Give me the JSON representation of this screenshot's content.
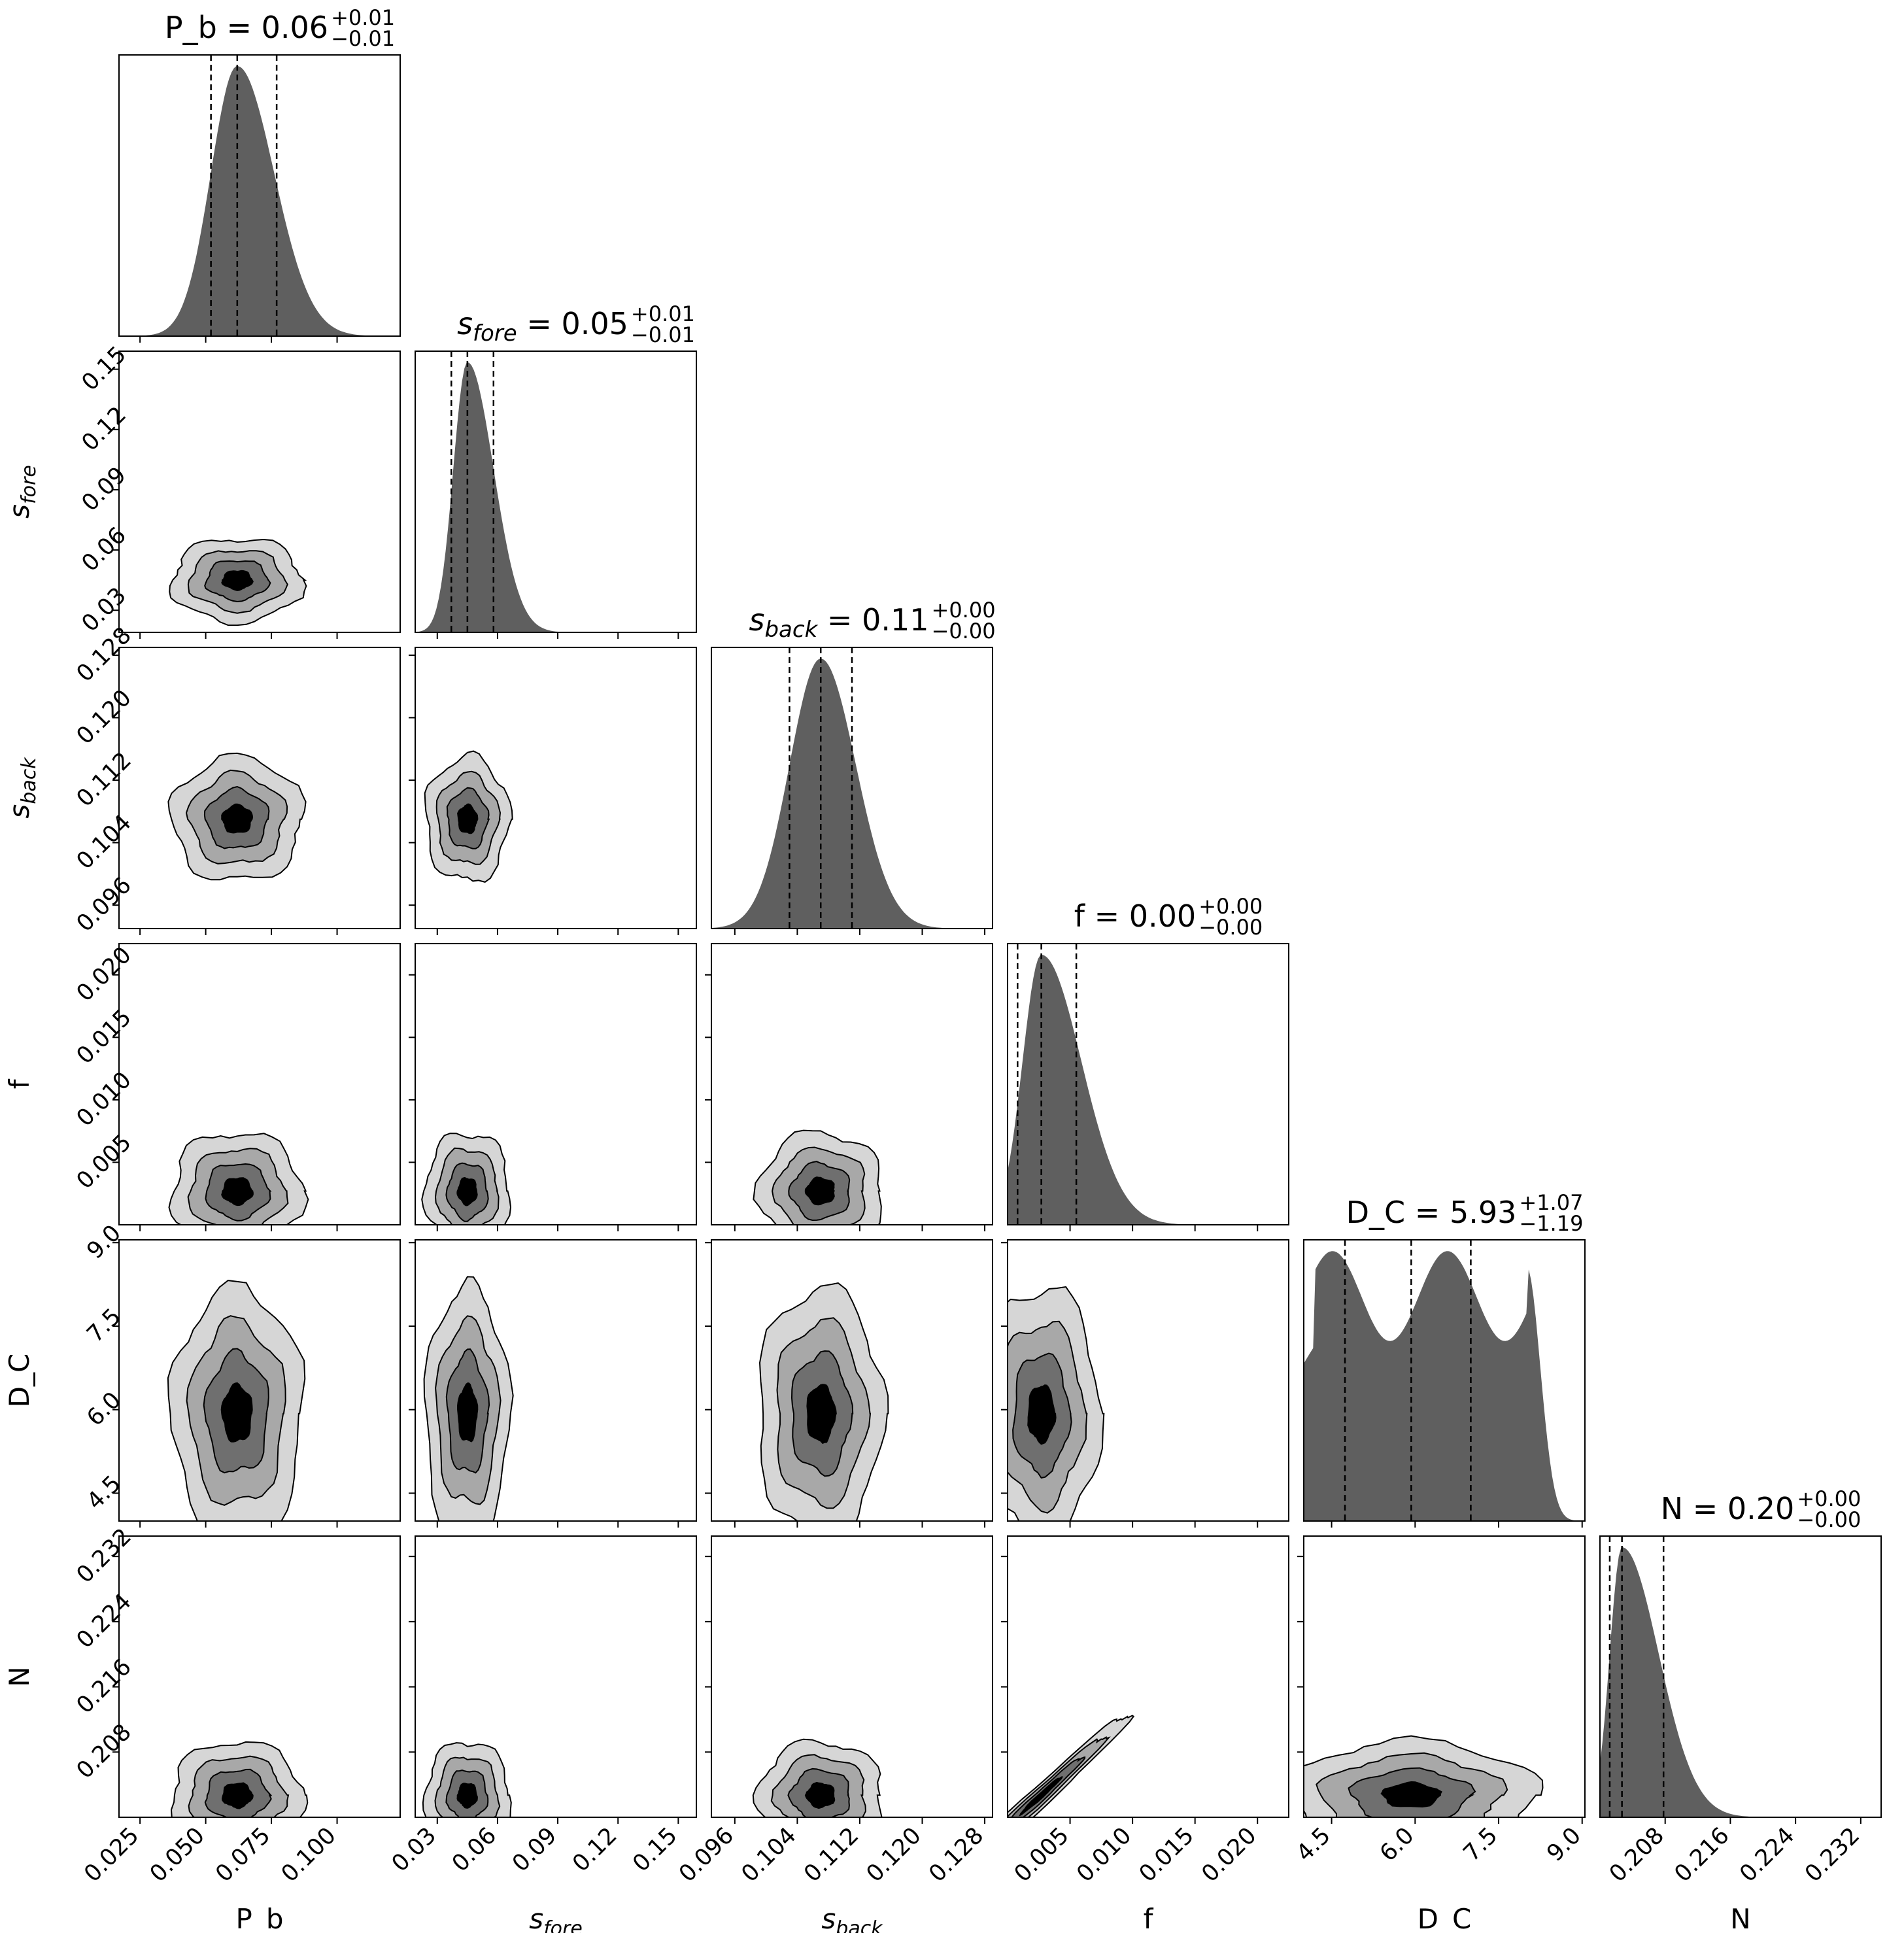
{
  "chart_data": {
    "type": "corner",
    "params": [
      {
        "key": "P_b",
        "label": "P_b",
        "label_base": "P_b",
        "label_sub": "",
        "range": [
          0.017,
          0.124
        ],
        "ticks": [
          0.025,
          0.05,
          0.075,
          0.1
        ],
        "tick_labels": [
          "0.025",
          "0.050",
          "0.075",
          "0.100"
        ],
        "median": 0.062,
        "q16": 0.052,
        "q84": 0.077,
        "title_value": "0.06",
        "title_plus": "+0.01",
        "title_minus": "−0.01",
        "hist_sigma_lo": 0.01,
        "hist_sigma_hi": 0.014
      },
      {
        "key": "s_fore",
        "label": "s_fore",
        "label_base": "s",
        "label_sub": "fore",
        "range": [
          0.019,
          0.159
        ],
        "ticks": [
          0.03,
          0.06,
          0.09,
          0.12,
          0.15
        ],
        "tick_labels": [
          "0.03",
          "0.06",
          "0.09",
          "0.12",
          "0.15"
        ],
        "median": 0.045,
        "q16": 0.037,
        "q84": 0.058,
        "title_value": "0.05",
        "title_plus": "+0.01",
        "title_minus": "−0.01",
        "hist_sigma_lo": 0.007,
        "hist_sigma_hi": 0.013
      },
      {
        "key": "s_back",
        "label": "s_back",
        "label_base": "s",
        "label_sub": "back",
        "range": [
          0.093,
          0.129
        ],
        "ticks": [
          0.096,
          0.104,
          0.112,
          0.12,
          0.128
        ],
        "tick_labels": [
          "0.096",
          "0.104",
          "0.112",
          "0.120",
          "0.128"
        ],
        "median": 0.107,
        "q16": 0.103,
        "q84": 0.111,
        "title_value": "0.11",
        "title_plus": "+0.00",
        "title_minus": "−0.00",
        "hist_sigma_lo": 0.004,
        "hist_sigma_hi": 0.0045
      },
      {
        "key": "f",
        "label": "f",
        "label_base": "f",
        "label_sub": "",
        "range": [
          0.0,
          0.0225
        ],
        "ticks": [
          0.005,
          0.01,
          0.015,
          0.02
        ],
        "tick_labels": [
          "0.005",
          "0.010",
          "0.015",
          "0.020"
        ],
        "median": 0.0027,
        "q16": 0.0008,
        "q84": 0.0055,
        "title_value": "0.00",
        "title_plus": "+0.00",
        "title_minus": "−0.00",
        "hist_sigma_lo": 0.0015,
        "hist_sigma_hi": 0.0032
      },
      {
        "key": "D_C",
        "label": "D_C",
        "label_base": "D_C",
        "label_sub": "",
        "range": [
          4.0,
          9.05
        ],
        "ticks": [
          4.5,
          6.0,
          7.5,
          9.0
        ],
        "tick_labels": [
          "4.5",
          "6.0",
          "7.5",
          "9.0"
        ],
        "median": 5.93,
        "q16": 4.74,
        "q84": 7.0,
        "title_value": "5.93",
        "title_plus": "+1.07",
        "title_minus": "−1.19",
        "hist_sigma_lo": 1.3,
        "hist_sigma_hi": 0.9
      },
      {
        "key": "N",
        "label": "N",
        "label_base": "N",
        "label_sub": "",
        "range": [
          0.2,
          0.2345
        ],
        "ticks": [
          0.208,
          0.216,
          0.224,
          0.232
        ],
        "tick_labels": [
          "0.208",
          "0.216",
          "0.224",
          "0.232"
        ],
        "median": 0.2027,
        "q16": 0.2012,
        "q84": 0.2078,
        "title_value": "0.20",
        "title_plus": "+0.00",
        "title_minus": "−0.00",
        "hist_sigma_lo": 0.0015,
        "hist_sigma_hi": 0.0045
      }
    ],
    "y_tick_labels_by_row": {
      "s_fore": [
        "0.03",
        "0.06",
        "0.09",
        "0.12",
        "0.15"
      ],
      "s_back": [
        "0.096",
        "0.104",
        "0.112",
        "0.120",
        "0.128"
      ],
      "f": [
        "0.005",
        "0.010",
        "0.015",
        "0.020"
      ],
      "D_C": [
        "4.5",
        "6.0",
        "7.5",
        "9.0"
      ],
      "N": [
        "0.208",
        "0.216",
        "0.224",
        "0.232"
      ]
    },
    "hist_color": "#5f5f5f",
    "contour_fills": [
      "#d6d6d6",
      "#a8a8a8",
      "#6f6f6f",
      "#000000"
    ],
    "quantile_line_style": "dashed"
  }
}
